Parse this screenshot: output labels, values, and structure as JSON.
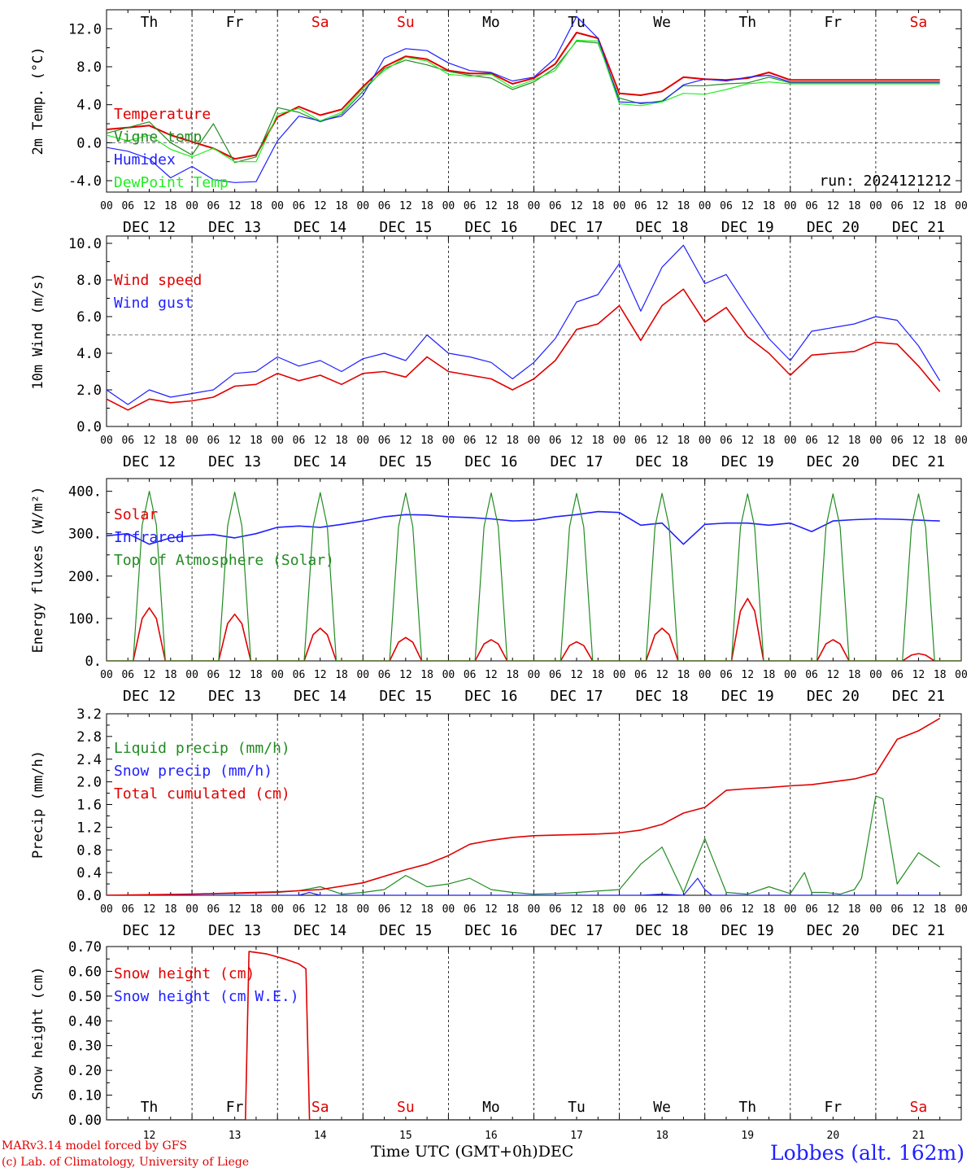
{
  "meta": {
    "run_label": "run: 2024121212",
    "model_line": "MARv3.14 model forced by GFS",
    "credit_line": "(c) Lab. of Climatology, University of Liege",
    "station": "Lobbes (alt. 162m)",
    "time_axis_label": "Time UTC (GMT+0h)",
    "time_axis_month": "DEC"
  },
  "weekdays": [
    {
      "label": "Th",
      "color": "#000000"
    },
    {
      "label": "Fr",
      "color": "#000000"
    },
    {
      "label": "Sa",
      "color": "#e00000"
    },
    {
      "label": "Su",
      "color": "#e00000"
    },
    {
      "label": "Mo",
      "color": "#000000"
    },
    {
      "label": "Tu",
      "color": "#000000"
    },
    {
      "label": "We",
      "color": "#000000"
    },
    {
      "label": "Th",
      "color": "#000000"
    },
    {
      "label": "Fr",
      "color": "#000000"
    },
    {
      "label": "Sa",
      "color": "#e00000"
    }
  ],
  "day_labels": [
    "DEC 12",
    "DEC 13",
    "DEC 14",
    "DEC 15",
    "DEC 16",
    "DEC 17",
    "DEC 18",
    "DEC 19",
    "DEC 20",
    "DEC 21"
  ],
  "day_numbers": [
    "12",
    "13",
    "14",
    "15",
    "16",
    "17",
    "18",
    "19",
    "20",
    "21"
  ],
  "hour_ticks": [
    "00",
    "06",
    "12",
    "18"
  ],
  "chart_data": [
    {
      "id": "temp",
      "type": "line",
      "ylabel": "2m Temp. (°C)",
      "ylim": [
        -5.2,
        14
      ],
      "yticks": [
        -4,
        0,
        4,
        8,
        12
      ],
      "ytick_labels": [
        "-4.0",
        "0.0",
        "4.0",
        "8.0",
        "12.0"
      ],
      "dashed_y": 0,
      "series": [
        {
          "name": "Temperature",
          "color": "#e00000",
          "width": 2,
          "x": [
            0,
            6,
            12,
            18,
            24,
            30,
            36,
            42,
            48,
            54,
            60,
            66,
            72,
            78,
            84,
            90,
            96,
            102,
            108,
            114,
            120,
            126,
            132,
            138,
            144,
            150,
            156,
            162,
            168,
            174,
            180,
            186,
            192,
            198,
            204,
            210,
            216,
            222,
            228,
            234
          ],
          "y": [
            1.4,
            1.6,
            1.8,
            0.8,
            0.1,
            -0.6,
            -1.7,
            -1.3,
            2.7,
            3.8,
            2.9,
            3.5,
            5.9,
            8.0,
            9.1,
            8.8,
            7.6,
            7.3,
            7.3,
            6.2,
            6.8,
            8.3,
            11.6,
            11.0,
            5.2,
            5.0,
            5.4,
            6.9,
            6.7,
            6.6,
            6.8,
            7.4,
            6.6,
            6.6,
            6.6,
            6.6,
            6.6,
            6.6,
            6.6,
            6.6
          ]
        },
        {
          "name": "Vigne temp",
          "color": "#228b22",
          "width": 1.2,
          "x": [
            0,
            6,
            12,
            18,
            24,
            30,
            36,
            42,
            48,
            54,
            60,
            66,
            72,
            78,
            84,
            90,
            96,
            102,
            108,
            114,
            120,
            126,
            132,
            138,
            144,
            150,
            156,
            162,
            168,
            174,
            180,
            186,
            192,
            198,
            204,
            210,
            216,
            222,
            228,
            234
          ],
          "y": [
            1.0,
            1.6,
            2.2,
            0.0,
            -1.3,
            2.0,
            -2.1,
            -1.5,
            3.7,
            3.2,
            2.2,
            3.0,
            5.4,
            7.8,
            8.7,
            8.2,
            7.5,
            7.1,
            6.8,
            5.6,
            6.4,
            7.9,
            10.7,
            10.5,
            4.7,
            4.1,
            4.4,
            6.0,
            6.0,
            6.2,
            6.3,
            6.9,
            6.3,
            6.3,
            6.3,
            6.3,
            6.3,
            6.3,
            6.3,
            6.3
          ]
        },
        {
          "name": "Humidex",
          "color": "#1f1fff",
          "width": 1.2,
          "x": [
            0,
            6,
            12,
            18,
            24,
            30,
            36,
            42,
            48,
            54,
            60,
            66,
            72,
            78,
            84,
            90,
            96,
            102,
            108,
            114,
            120,
            126,
            132,
            138,
            144,
            150,
            156,
            162,
            168,
            174,
            180,
            186,
            192,
            198,
            204,
            210,
            216,
            222,
            228,
            234
          ],
          "y": [
            -0.5,
            -0.9,
            -1.7,
            -3.7,
            -2.5,
            -3.9,
            -4.2,
            -4.1,
            0.2,
            2.8,
            2.3,
            2.8,
            5.0,
            8.9,
            9.9,
            9.7,
            8.4,
            7.6,
            7.4,
            6.5,
            6.9,
            8.9,
            13.3,
            11.0,
            4.3,
            4.2,
            4.3,
            6.1,
            6.7,
            6.5,
            6.9,
            7.1,
            6.4,
            6.4,
            6.4,
            6.4,
            6.4,
            6.4,
            6.4,
            6.4
          ]
        },
        {
          "name": "DewPoint Temp",
          "color": "#22ee22",
          "width": 1.2,
          "x": [
            0,
            6,
            12,
            18,
            24,
            30,
            36,
            42,
            48,
            54,
            60,
            66,
            72,
            78,
            84,
            90,
            96,
            102,
            108,
            114,
            120,
            126,
            132,
            138,
            144,
            150,
            156,
            162,
            168,
            174,
            180,
            186,
            192,
            198,
            204,
            210,
            216,
            222,
            228,
            234
          ],
          "y": [
            0.8,
            0.2,
            0.8,
            -0.7,
            -1.5,
            -0.6,
            -2.0,
            -2.0,
            3.0,
            3.6,
            2.3,
            3.2,
            5.7,
            7.6,
            9.0,
            8.6,
            7.2,
            7.0,
            7.2,
            5.8,
            6.6,
            7.6,
            10.8,
            10.7,
            4.1,
            3.9,
            4.3,
            5.2,
            5.1,
            5.6,
            6.2,
            6.4,
            6.2,
            6.2,
            6.2,
            6.2,
            6.2,
            6.2,
            6.2,
            6.2
          ]
        }
      ]
    },
    {
      "id": "wind",
      "type": "line",
      "ylabel": "10m Wind (m/s)",
      "ylim": [
        0,
        10.4
      ],
      "yticks": [
        0,
        2,
        4,
        6,
        8,
        10
      ],
      "ytick_labels": [
        "0.0",
        "2.0",
        "4.0",
        "6.0",
        "8.0",
        "10.0"
      ],
      "dashed_y": 5,
      "series": [
        {
          "name": "Wind speed",
          "color": "#e00000",
          "width": 1.6,
          "x": [
            0,
            6,
            12,
            18,
            24,
            30,
            36,
            42,
            48,
            54,
            60,
            66,
            72,
            78,
            84,
            90,
            96,
            102,
            108,
            114,
            120,
            126,
            132,
            138,
            144,
            150,
            156,
            162,
            168,
            174,
            180,
            186,
            192,
            198,
            204,
            210,
            216,
            222,
            228,
            234
          ],
          "y": [
            1.5,
            0.9,
            1.5,
            1.3,
            1.4,
            1.6,
            2.2,
            2.3,
            2.9,
            2.5,
            2.8,
            2.3,
            2.9,
            3.0,
            2.7,
            3.8,
            3.0,
            2.8,
            2.6,
            2.0,
            2.6,
            3.6,
            5.3,
            5.6,
            6.6,
            4.7,
            6.6,
            7.5,
            5.7,
            6.5,
            4.9,
            4.0,
            2.8,
            3.9,
            4.0,
            4.1,
            4.6,
            4.5,
            3.3,
            1.9
          ]
        },
        {
          "name": "Wind gust",
          "color": "#1f1fff",
          "width": 1.2,
          "x": [
            0,
            6,
            12,
            18,
            24,
            30,
            36,
            42,
            48,
            54,
            60,
            66,
            72,
            78,
            84,
            90,
            96,
            102,
            108,
            114,
            120,
            126,
            132,
            138,
            144,
            150,
            156,
            162,
            168,
            174,
            180,
            186,
            192,
            198,
            204,
            210,
            216,
            222,
            228,
            234
          ],
          "y": [
            2.0,
            1.2,
            2.0,
            1.6,
            1.8,
            2.0,
            2.9,
            3.0,
            3.8,
            3.3,
            3.6,
            3.0,
            3.7,
            4.0,
            3.6,
            5.0,
            4.0,
            3.8,
            3.5,
            2.6,
            3.5,
            4.8,
            6.8,
            7.2,
            8.9,
            6.3,
            8.7,
            9.9,
            7.8,
            8.3,
            6.5,
            4.8,
            3.6,
            5.2,
            5.4,
            5.6,
            6.0,
            5.8,
            4.4,
            2.5
          ]
        }
      ]
    },
    {
      "id": "energy",
      "type": "line",
      "ylabel": "Energy fluxes (W/m²)",
      "ylim": [
        0,
        430
      ],
      "yticks": [
        0,
        100,
        200,
        300,
        400
      ],
      "ytick_labels": [
        "0.",
        "100.",
        "200.",
        "300.",
        "400."
      ],
      "dashed_y": null,
      "series": [
        {
          "name": "Solar",
          "color": "#e00000",
          "width": 1.6,
          "kind": "pulse",
          "peaks": [
            125,
            110,
            77,
            55,
            50,
            45,
            77,
            147,
            50,
            17
          ]
        },
        {
          "name": "Infrared",
          "color": "#1f1fff",
          "width": 1.6,
          "x": [
            0,
            6,
            12,
            18,
            24,
            30,
            36,
            42,
            48,
            54,
            60,
            66,
            72,
            78,
            84,
            90,
            96,
            102,
            108,
            114,
            120,
            126,
            132,
            138,
            144,
            150,
            156,
            162,
            168,
            174,
            180,
            186,
            192,
            198,
            204,
            210,
            216,
            222,
            228,
            234
          ],
          "y": [
            295,
            300,
            275,
            290,
            295,
            298,
            290,
            300,
            315,
            318,
            315,
            322,
            330,
            340,
            345,
            344,
            340,
            338,
            335,
            330,
            332,
            340,
            345,
            352,
            350,
            320,
            325,
            275,
            322,
            325,
            325,
            320,
            325,
            305,
            330,
            333,
            335,
            334,
            332,
            330
          ]
        },
        {
          "name": "Top of Atmosphere (Solar)",
          "color": "#228b22",
          "width": 1.2,
          "kind": "pulse",
          "peaks": [
            400,
            398,
            397,
            396,
            396,
            395,
            395,
            394,
            394,
            394
          ]
        }
      ]
    },
    {
      "id": "precip",
      "type": "line",
      "ylabel": "Precip (mm/h)",
      "ylim": [
        0,
        3.2
      ],
      "yticks": [
        0,
        0.4,
        0.8,
        1.2,
        1.6,
        2.0,
        2.4,
        2.8,
        3.2
      ],
      "ytick_labels": [
        "0.0",
        "0.4",
        "0.8",
        "1.2",
        "1.6",
        "2.0",
        "2.4",
        "2.8",
        "3.2"
      ],
      "dashed_y": null,
      "series": [
        {
          "name": "Liquid precip (mm/h)",
          "color": "#228b22",
          "width": 1.2,
          "x": [
            0,
            18,
            24,
            36,
            48,
            54,
            60,
            66,
            72,
            78,
            84,
            90,
            96,
            102,
            108,
            114,
            120,
            126,
            132,
            144,
            150,
            156,
            162,
            168,
            174,
            180,
            186,
            192,
            196,
            198,
            202,
            206,
            210,
            212,
            216,
            218,
            222,
            228,
            234
          ],
          "y": [
            0,
            0,
            0.02,
            0.03,
            0.05,
            0.08,
            0.15,
            0.02,
            0.05,
            0.1,
            0.35,
            0.15,
            0.2,
            0.3,
            0.1,
            0.05,
            0.02,
            0.03,
            0.05,
            0.1,
            0.55,
            0.85,
            0.05,
            1.0,
            0.05,
            0.02,
            0.15,
            0.03,
            0.4,
            0.05,
            0.05,
            0.02,
            0.1,
            0.3,
            1.75,
            1.7,
            0.2,
            0.75,
            0.5
          ]
        },
        {
          "name": "Snow precip (mm/h)",
          "color": "#1f1fff",
          "width": 1.2,
          "x": [
            0,
            54,
            57,
            60,
            150,
            156,
            162,
            166,
            168,
            170,
            174,
            234
          ],
          "y": [
            0,
            0,
            0.05,
            0,
            0,
            0.02,
            0,
            0.3,
            0.1,
            0,
            0,
            0
          ]
        },
        {
          "name": "Total cumulated (cm)",
          "color": "#e00000",
          "width": 1.6,
          "x": [
            0,
            24,
            36,
            48,
            60,
            72,
            84,
            90,
            96,
            102,
            108,
            114,
            120,
            126,
            132,
            138,
            144,
            150,
            156,
            162,
            168,
            174,
            180,
            186,
            192,
            198,
            204,
            210,
            216,
            222,
            228,
            234
          ],
          "y": [
            0,
            0.02,
            0.04,
            0.06,
            0.1,
            0.22,
            0.45,
            0.55,
            0.7,
            0.9,
            0.97,
            1.02,
            1.05,
            1.06,
            1.07,
            1.08,
            1.1,
            1.15,
            1.25,
            1.45,
            1.55,
            1.85,
            1.88,
            1.9,
            1.93,
            1.95,
            2.0,
            2.05,
            2.15,
            2.75,
            2.9,
            3.12
          ]
        }
      ]
    },
    {
      "id": "snow",
      "type": "line",
      "ylabel": "Snow height (cm)",
      "ylim": [
        0,
        0.7
      ],
      "yticks": [
        0,
        0.1,
        0.2,
        0.3,
        0.4,
        0.5,
        0.6,
        0.7
      ],
      "ytick_labels": [
        "0.00",
        "0.10",
        "0.20",
        "0.30",
        "0.40",
        "0.50",
        "0.60",
        "0.70"
      ],
      "dashed_y": null,
      "series": [
        {
          "name": "Snow height (cm)",
          "color": "#e00000",
          "width": 1.6,
          "x": [
            0,
            39,
            40,
            45,
            50,
            54,
            56,
            57,
            234
          ],
          "y": [
            0,
            0,
            0.68,
            0.67,
            0.65,
            0.63,
            0.61,
            0,
            0
          ]
        },
        {
          "name": "Snow height (cm W.E.)",
          "color": "#1f1fff",
          "width": 1.2,
          "x": [
            0,
            234
          ],
          "y": [
            0,
            0
          ]
        }
      ]
    }
  ]
}
